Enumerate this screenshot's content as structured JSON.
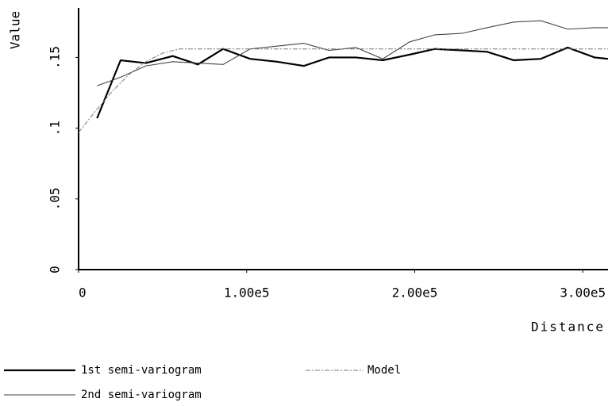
{
  "chart_data": {
    "type": "line",
    "xlabel": "Distance",
    "ylabel": "Value",
    "xlim": [
      0,
      315000
    ],
    "ylim": [
      0,
      0.185
    ],
    "xticks": [
      0,
      {
        "value": 100000,
        "label": "1.00e5"
      },
      {
        "value": 200000,
        "label": "2.00e5"
      },
      {
        "value": 300000,
        "label": "3.00e5"
      }
    ],
    "yticks": [
      0,
      {
        "value": 0.05,
        "label": ".05"
      },
      {
        "value": 0.1,
        "label": ".1"
      },
      {
        "value": 0.15,
        "label": ".15"
      }
    ],
    "series": [
      {
        "name": "1st semi-variogram",
        "color": "#000000",
        "line_style": "solid",
        "x": [
          11000,
          25000,
          40000,
          56000,
          71000,
          86000,
          102000,
          118000,
          134000,
          149000,
          165000,
          181000,
          197000,
          212000,
          228000,
          243000,
          259000,
          275000,
          291000,
          307000,
          315000
        ],
        "values": [
          0.107,
          0.148,
          0.146,
          0.151,
          0.145,
          0.156,
          0.149,
          0.147,
          0.144,
          0.15,
          0.15,
          0.148,
          0.152,
          0.156,
          0.155,
          0.154,
          0.148,
          0.149,
          0.157,
          0.15,
          0.149
        ]
      },
      {
        "name": "2nd semi-variogram",
        "color": "#444444",
        "line_style": "thin",
        "x": [
          11000,
          25000,
          40000,
          56000,
          71000,
          86000,
          102000,
          118000,
          134000,
          149000,
          165000,
          181000,
          197000,
          212000,
          228000,
          243000,
          259000,
          275000,
          291000,
          307000,
          315000
        ],
        "values": [
          0.13,
          0.136,
          0.144,
          0.147,
          0.146,
          0.145,
          0.156,
          0.158,
          0.16,
          0.155,
          0.157,
          0.149,
          0.161,
          0.166,
          0.167,
          0.171,
          0.175,
          0.176,
          0.17,
          0.171,
          0.171
        ]
      },
      {
        "name": "Model",
        "color": "#777777",
        "line_style": "dashed",
        "x": [
          0,
          10000,
          20000,
          30000,
          40000,
          50000,
          60000,
          315000
        ],
        "values": [
          0.097,
          0.112,
          0.126,
          0.138,
          0.147,
          0.153,
          0.156,
          0.156
        ]
      }
    ]
  }
}
